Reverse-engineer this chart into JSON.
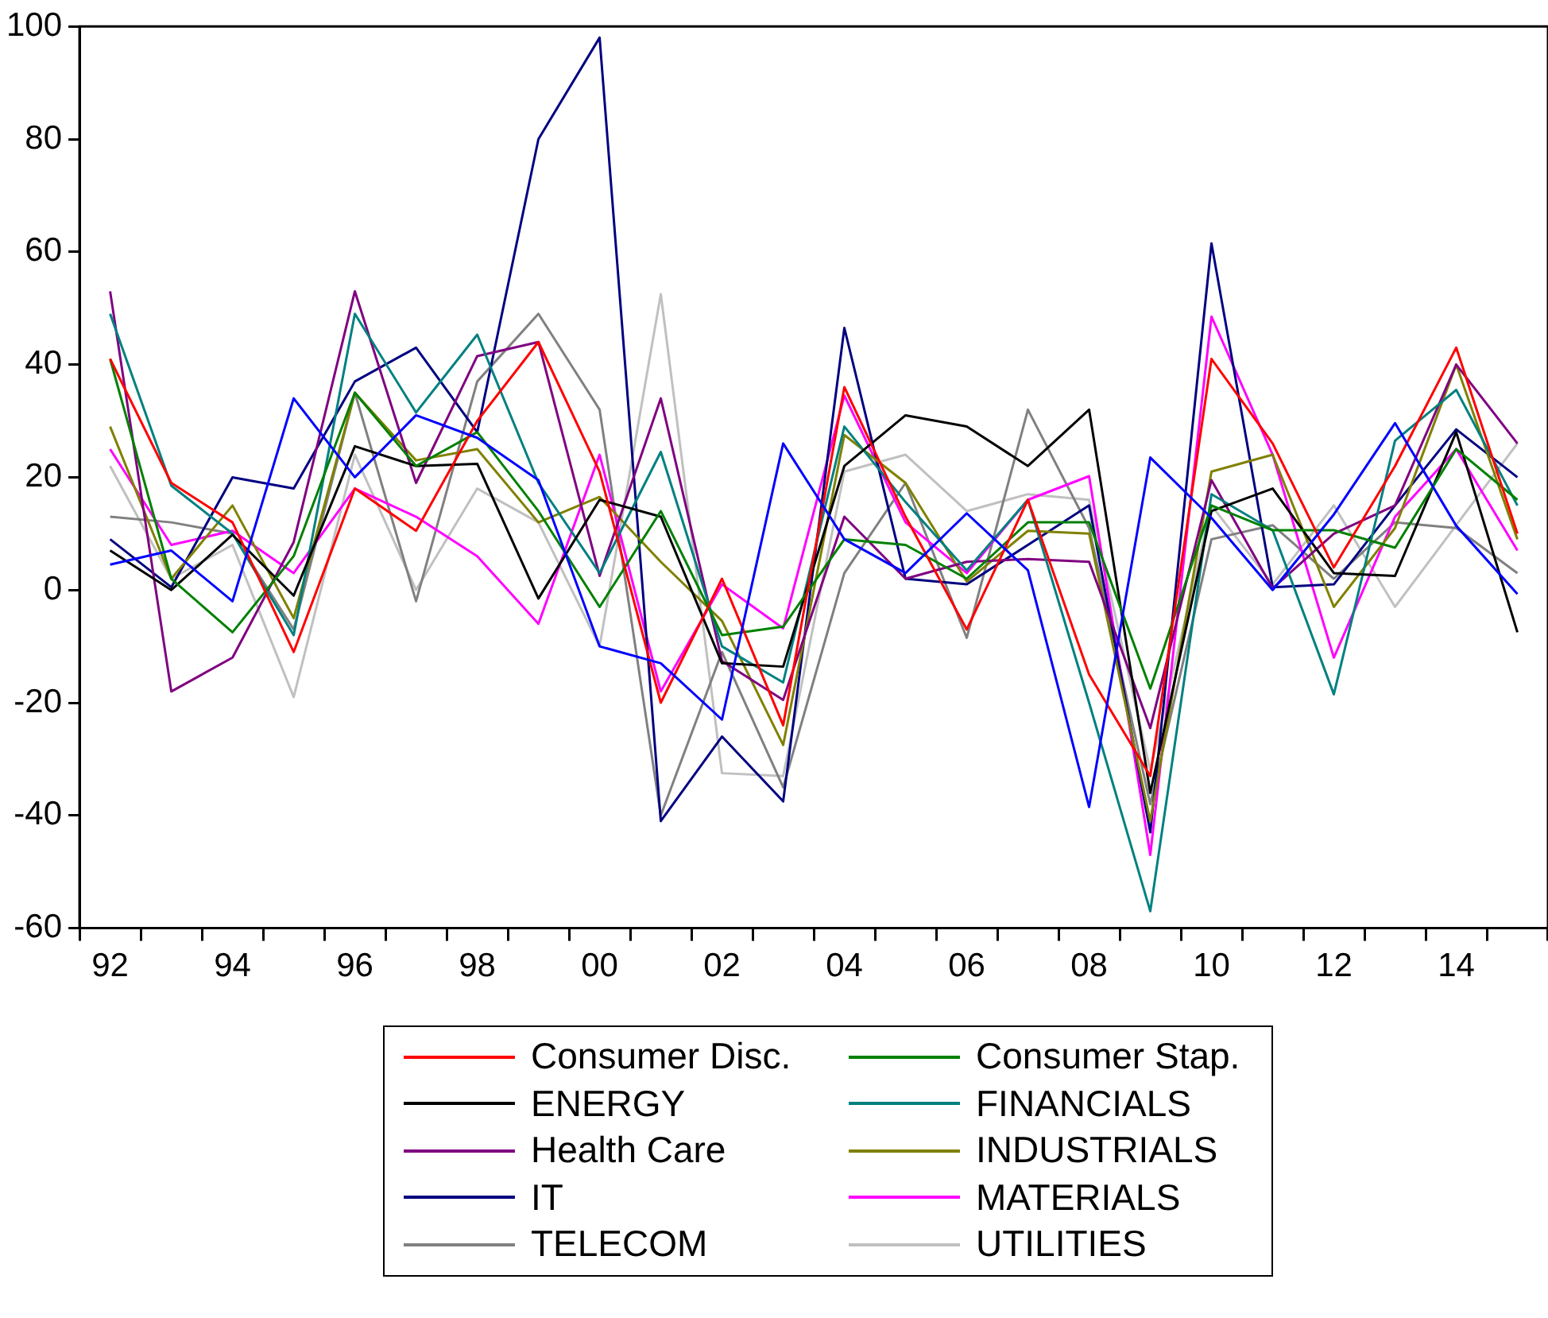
{
  "chart_data": {
    "type": "line",
    "categories": [
      "92",
      null,
      "94",
      null,
      "96",
      null,
      "98",
      null,
      "00",
      null,
      "02",
      null,
      "04",
      null,
      "06",
      null,
      "08",
      null,
      "10",
      null,
      "12",
      null,
      "14",
      null
    ],
    "ylim": [
      -60,
      100
    ],
    "yticks": [
      -60,
      -40,
      -20,
      0,
      20,
      40,
      60,
      80,
      100
    ],
    "grid": false,
    "legend": "bottom",
    "marker": "none",
    "line_style": "solid",
    "series": [
      {
        "color": "#0000ff",
        "values": [
          4.5,
          7,
          -2,
          34,
          20,
          31,
          27,
          19.5,
          -10,
          -13,
          -23,
          26,
          9,
          3,
          13.6,
          3.5,
          -38.5,
          23.5,
          12.8,
          0,
          13.4,
          29.6,
          11.4,
          -0.7
        ]
      },
      {
        "name": "Consumer Disc.",
        "color": "#ff0000",
        "values": [
          41,
          19,
          12,
          -11,
          18,
          10.5,
          30,
          44,
          21,
          -20,
          2,
          -24,
          36,
          13,
          -7,
          16,
          -15,
          -33,
          41,
          26,
          4,
          22,
          43,
          10
        ]
      },
      {
        "name": "Consumer Stap.",
        "color": "#008000",
        "values": [
          41,
          2,
          -7.5,
          6,
          35,
          22,
          28,
          14,
          -3,
          14,
          -8,
          -6.5,
          9,
          8,
          2,
          12,
          12,
          -17.5,
          15,
          10.6,
          10.6,
          7.5,
          25,
          16
        ]
      },
      {
        "name": "ENERGY",
        "color": "#000000",
        "values": [
          7,
          0,
          9.8,
          -1,
          25.5,
          22,
          22.4,
          -1.5,
          16,
          13,
          -13,
          -13.6,
          22,
          31,
          29,
          22,
          32,
          -36,
          14,
          18,
          3,
          2.5,
          28,
          -7.5
        ]
      },
      {
        "name": "FINANCIALS",
        "color": "#008080",
        "values": [
          49,
          18.5,
          10,
          -8,
          49,
          31.5,
          45.3,
          19,
          3,
          24.5,
          -10,
          -16.4,
          29,
          15.6,
          3.5,
          16,
          -20,
          -57,
          17,
          10.6,
          -18.5,
          26.5,
          35.5,
          15
        ]
      },
      {
        "name": "Health Care",
        "color": "#800080",
        "values": [
          53,
          -18,
          -12,
          8.5,
          53,
          19,
          41.5,
          44,
          2.5,
          34,
          -12.6,
          -19.5,
          13,
          2,
          5,
          5.5,
          5,
          -24.5,
          19.5,
          0.3,
          10,
          15,
          40,
          26
        ]
      },
      {
        "name": "INDUSTRIALS",
        "color": "#808000",
        "values": [
          29,
          2,
          15,
          -5,
          35,
          23,
          25,
          12,
          16.5,
          5,
          -5.5,
          -27.5,
          27.5,
          19,
          1.5,
          10.5,
          10,
          -41,
          21,
          24,
          -3,
          11,
          40,
          9
        ]
      },
      {
        "name": "IT",
        "color": "#000080",
        "values": [
          9,
          0.5,
          20,
          18,
          37,
          43,
          28,
          80,
          98,
          -41,
          -26,
          -37.5,
          46.5,
          2,
          1,
          8,
          15,
          -43,
          61.5,
          0.5,
          1,
          15,
          28.5,
          20
        ]
      },
      {
        "name": "MATERIALS",
        "color": "#ff00ff",
        "values": [
          25,
          8,
          10.5,
          3,
          18,
          13,
          6,
          -6,
          24,
          -18,
          1,
          -6.8,
          34.5,
          12,
          3,
          16,
          20.2,
          -47,
          48.5,
          24,
          -12,
          13,
          25,
          7
        ]
      },
      {
        "name": "TELECOM",
        "color": "#808080",
        "values": [
          13,
          12,
          10,
          -7,
          35,
          -2,
          37,
          49,
          32,
          -40,
          -11,
          -35,
          3,
          19,
          -8.5,
          32,
          11,
          -38,
          9,
          11.5,
          2,
          12,
          11,
          3
        ]
      },
      {
        "name": "UTILITIES",
        "color": "#c0c0c0",
        "values": [
          22,
          2,
          8,
          -19,
          24,
          0,
          18,
          12,
          -10,
          52.5,
          -32.5,
          -33,
          21,
          24,
          14,
          17,
          16,
          -32,
          15,
          1,
          15,
          -3,
          11.5,
          26
        ]
      }
    ]
  }
}
